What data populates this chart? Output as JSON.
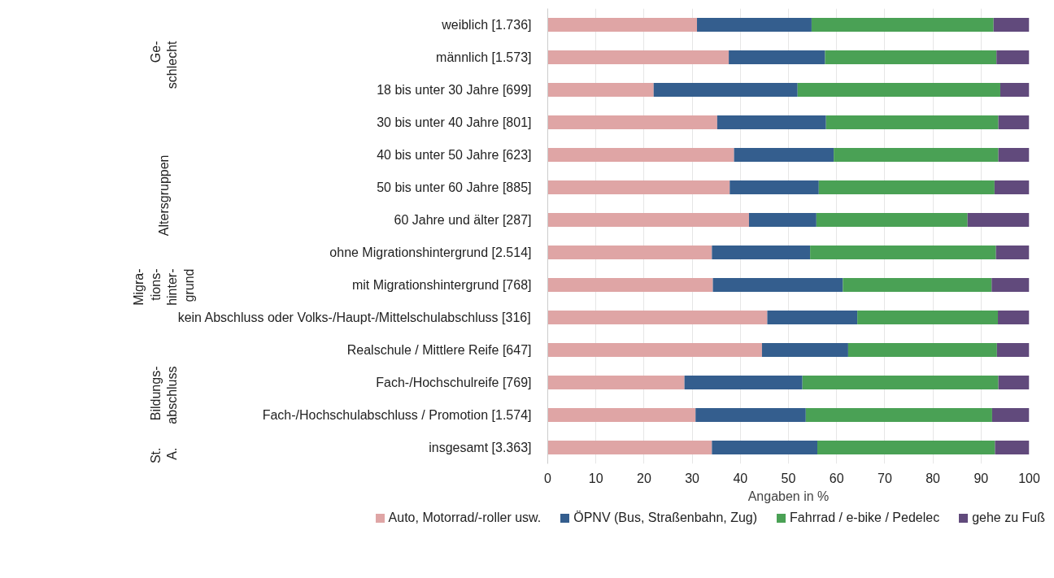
{
  "chart_data": {
    "type": "bar",
    "orientation": "horizontal",
    "stacked": true,
    "categories": [
      "weiblich [1.736]",
      "männlich [1.573]",
      "18 bis unter 30 Jahre [699]",
      "30 bis unter 40 Jahre [801]",
      "40 bis unter 50 Jahre [623]",
      "50 bis unter 60 Jahre [885]",
      "60 Jahre und älter [287]",
      "ohne Migrationshintergrund [2.514]",
      "mit Migrationshintergrund [768]",
      "kein Abschluss oder Volks-/Haupt-/Mittelschulabschluss [316]",
      "Realschule / Mittlere Reife [647]",
      "Fach-/Hochschulreife [769]",
      "Fach-/Hochschulabschluss / Promotion [1.574]",
      "insgesamt [3.363]"
    ],
    "series": [
      {
        "name": "Auto, Motorrad/-roller usw.",
        "color": "#dfa5a5",
        "values": [
          31.0,
          37.6,
          22.0,
          35.2,
          38.7,
          37.8,
          41.8,
          34.1,
          34.3,
          45.6,
          44.5,
          28.4,
          30.7,
          34.1
        ]
      },
      {
        "name": "ÖPNV (Bus, Straßenbahn, Zug)",
        "color": "#345e8e",
        "values": [
          23.8,
          20.0,
          29.9,
          22.6,
          20.7,
          18.5,
          14.0,
          20.4,
          27.0,
          18.7,
          17.9,
          24.5,
          22.9,
          21.9
        ]
      },
      {
        "name": "Fahrrad / e-bike / Pedelec",
        "color": "#4aa155",
        "values": [
          37.8,
          35.6,
          42.1,
          35.8,
          34.2,
          36.5,
          31.4,
          38.6,
          30.9,
          29.2,
          30.9,
          40.7,
          38.7,
          36.9
        ]
      },
      {
        "name": "gehe zu Fuß",
        "color": "#614a7c",
        "values": [
          7.4,
          6.8,
          6.0,
          6.4,
          6.4,
          7.2,
          12.8,
          6.9,
          7.8,
          6.5,
          6.7,
          6.4,
          7.7,
          7.1
        ]
      }
    ],
    "xlabel": "Angaben in %",
    "xlim": [
      0,
      100
    ],
    "xticks": [
      0,
      10,
      20,
      30,
      40,
      50,
      60,
      70,
      80,
      90,
      100
    ],
    "grid": "x",
    "legend": "bottom",
    "annotations": [
      "Ge-\nschlecht",
      "Altersgruppen",
      "Migra-\ntions-\nhinter-\ngrund",
      "Bildungs-\nabschluss",
      "St.\nA."
    ]
  }
}
